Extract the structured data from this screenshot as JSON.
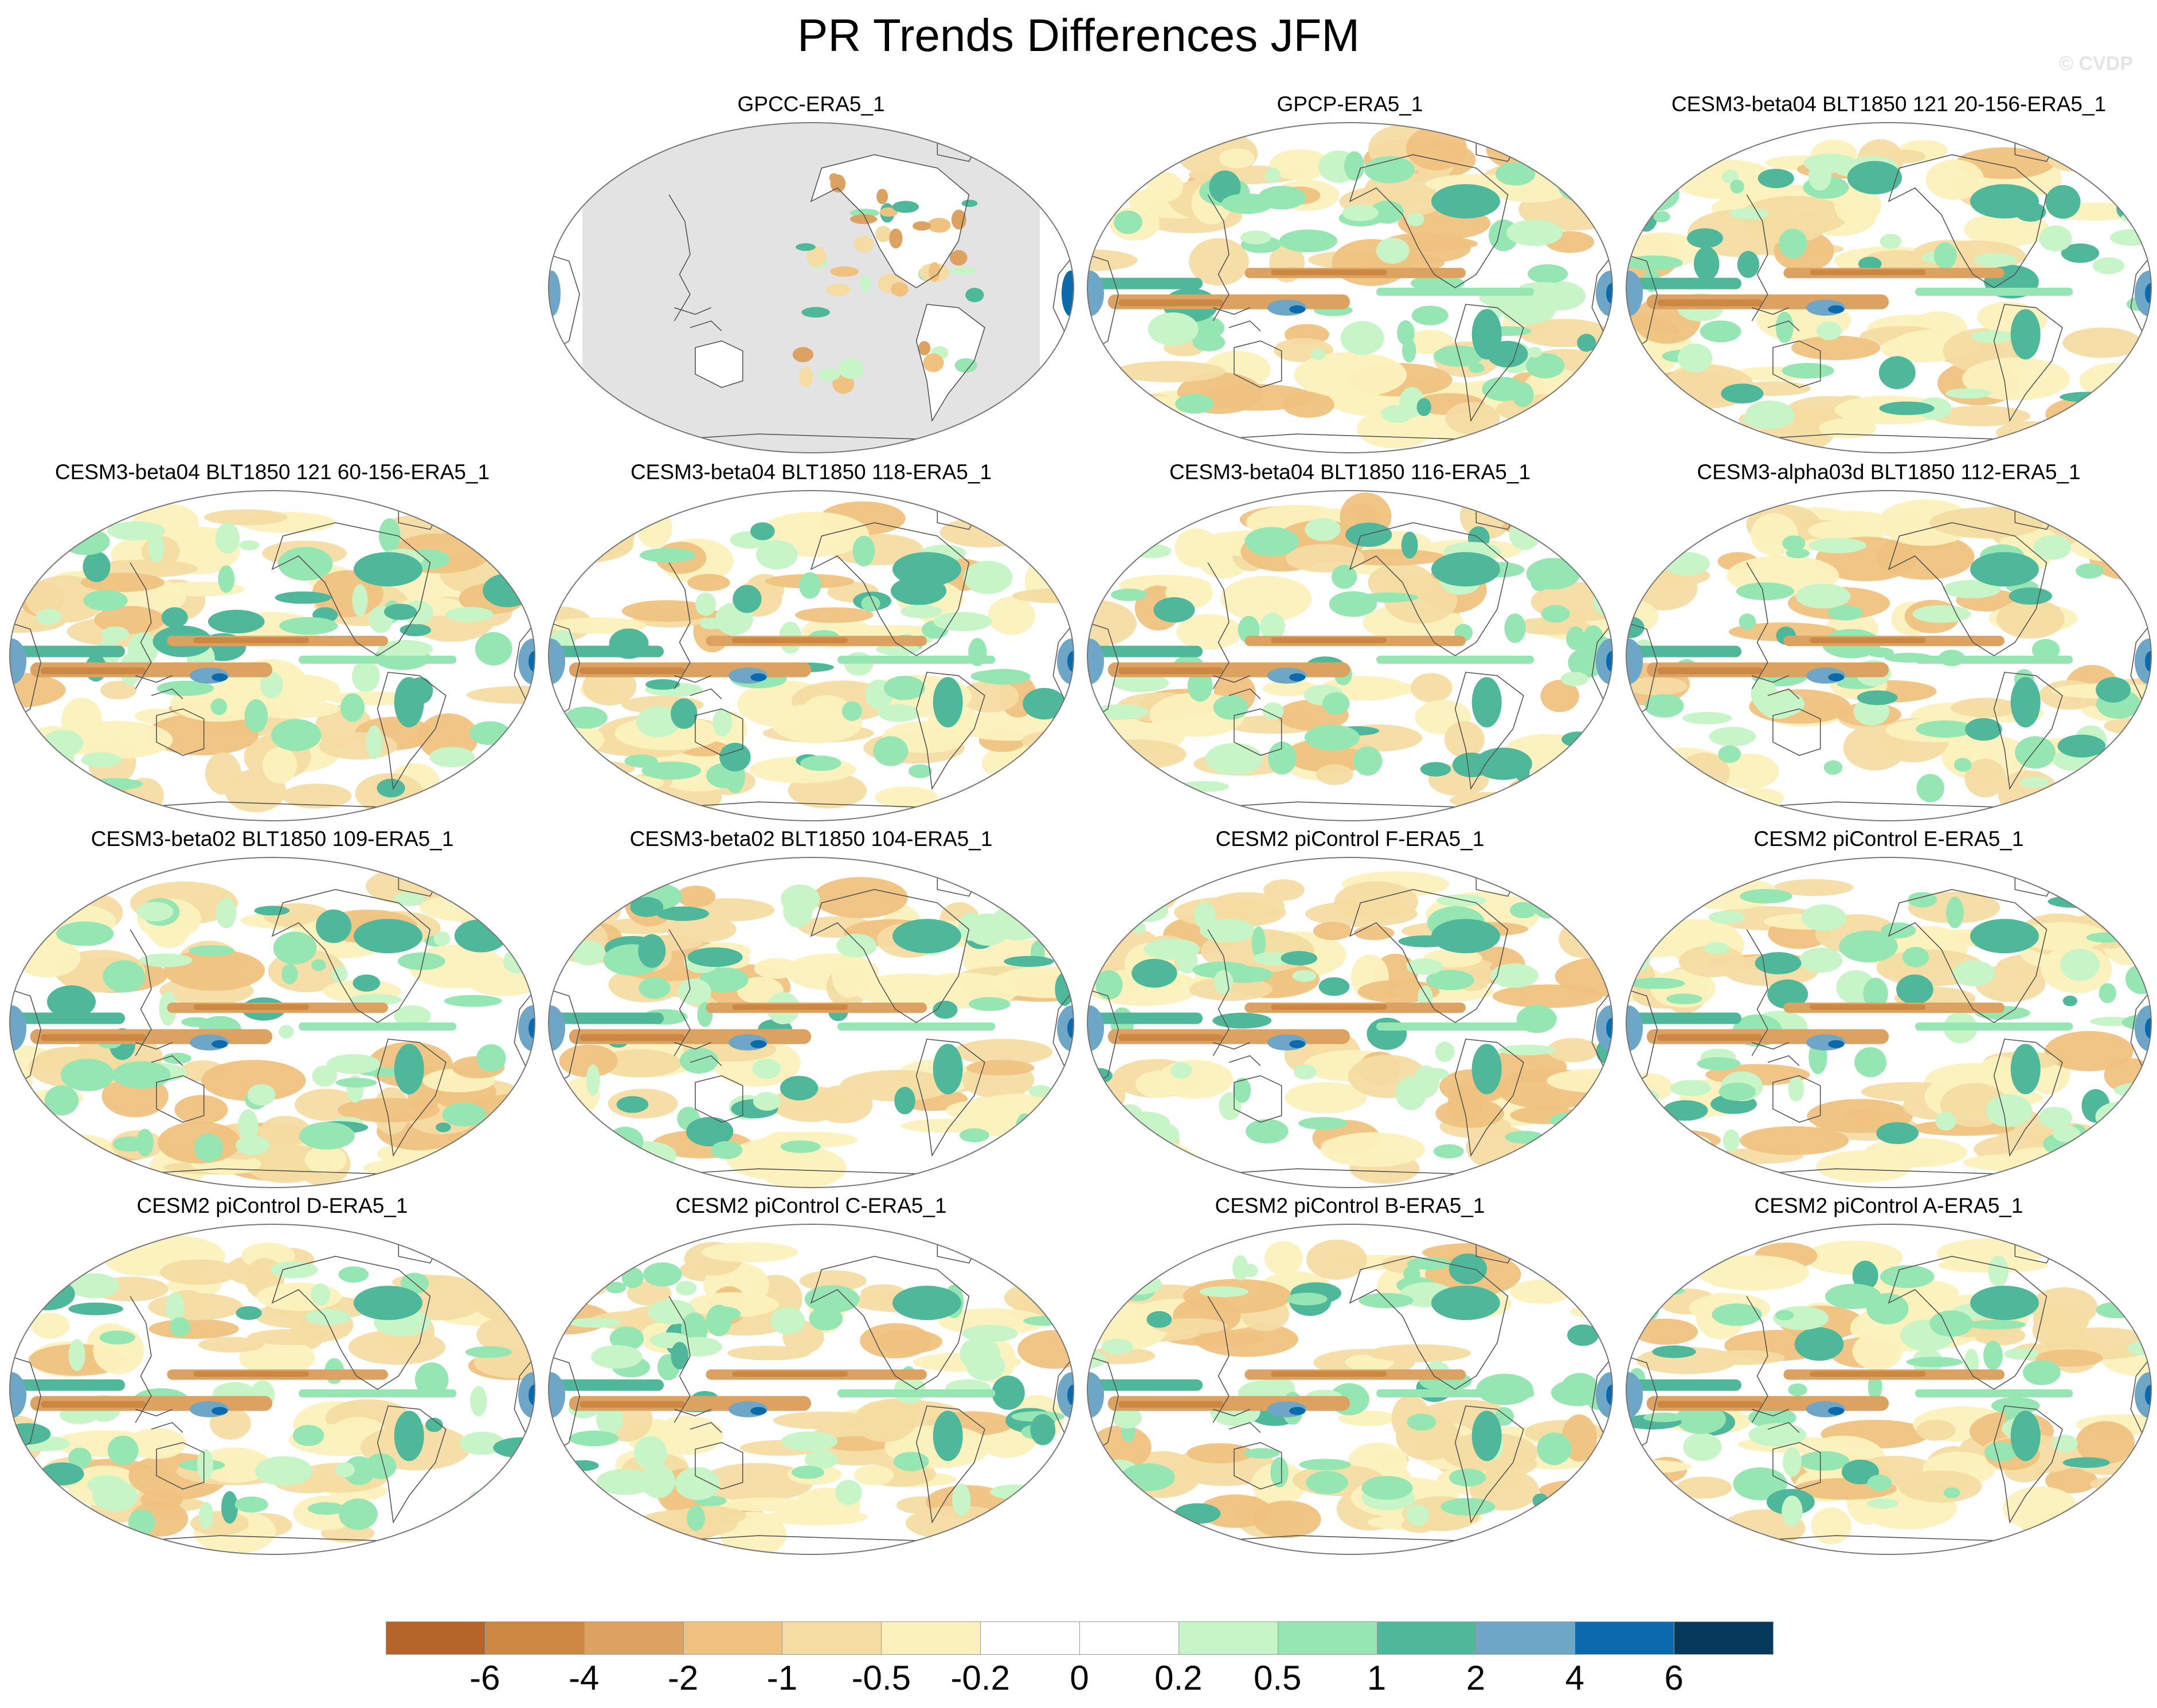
{
  "title": "PR Trends Differences JFM",
  "credit": "© CVDP",
  "panels": [
    {
      "label": "GPCC-ERA5_1",
      "masked_ocean": true
    },
    {
      "label": "GPCP-ERA5_1"
    },
    {
      "label": "CESM3-beta04 BLT1850 121 20-156-ERA5_1"
    },
    {
      "label": "CESM3-beta04 BLT1850 121 60-156-ERA5_1"
    },
    {
      "label": "CESM3-beta04 BLT1850 118-ERA5_1"
    },
    {
      "label": "CESM3-beta04 BLT1850 116-ERA5_1"
    },
    {
      "label": "CESM3-alpha03d BLT1850 112-ERA5_1"
    },
    {
      "label": "CESM3-beta02 BLT1850 109-ERA5_1"
    },
    {
      "label": "CESM3-beta02 BLT1850 104-ERA5_1"
    },
    {
      "label": "CESM2 piControl F-ERA5_1"
    },
    {
      "label": "CESM2 piControl E-ERA5_1"
    },
    {
      "label": "CESM2 piControl D-ERA5_1"
    },
    {
      "label": "CESM2 piControl C-ERA5_1"
    },
    {
      "label": "CESM2 piControl B-ERA5_1"
    },
    {
      "label": "CESM2 piControl A-ERA5_1"
    }
  ],
  "colorbar": {
    "colors": [
      "#b5652a",
      "#cc8843",
      "#dba262",
      "#efc27f",
      "#f4dca2",
      "#fbf1bd",
      "#ffffff",
      "#ffffff",
      "#c7f5c8",
      "#96e6b3",
      "#4fb79a",
      "#6da6c6",
      "#0b6aab",
      "#063a5c"
    ],
    "labels": [
      "-6",
      "-4",
      "-2",
      "-1",
      "-0.5",
      "-0.2",
      "0",
      "0.2",
      "0.5",
      "1",
      "2",
      "4",
      "6"
    ]
  },
  "colors": {
    "land_mask": "#e3e3e3",
    "coast": "#555555"
  }
}
